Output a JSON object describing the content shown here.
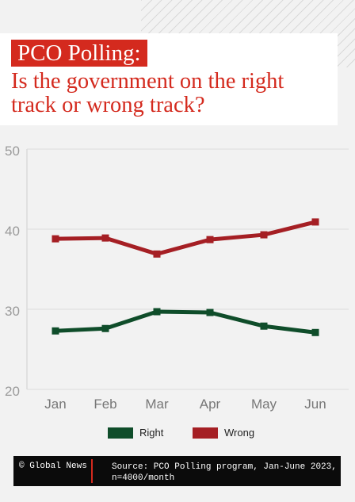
{
  "header": {
    "kicker": "PCO Polling:",
    "headline": "Is the government on the right track or wrong track?"
  },
  "chart_data": {
    "type": "line",
    "title": "Is the government on the right track or wrong track?",
    "categories": [
      "Jan",
      "Feb",
      "Mar",
      "Apr",
      "May",
      "Jun"
    ],
    "series": [
      {
        "name": "Right",
        "color": "#0f4d2a",
        "values": [
          27.3,
          27.6,
          29.7,
          29.6,
          27.9,
          27.1
        ]
      },
      {
        "name": "Wrong",
        "color": "#a51f24",
        "values": [
          38.8,
          38.9,
          36.9,
          38.7,
          39.3,
          40.9
        ]
      }
    ],
    "ylim": [
      20,
      50
    ],
    "yticks": [
      20,
      30,
      40,
      50
    ],
    "grid": true,
    "legend_position": "bottom-center"
  },
  "footer": {
    "credit": "© Global News",
    "source": "Source: PCO Polling program, Jan-June 2023, n=4000/month"
  }
}
